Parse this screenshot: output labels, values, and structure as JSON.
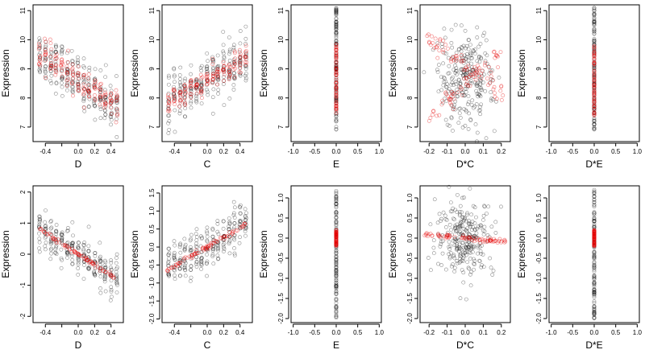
{
  "colors": {
    "observed": "#000000",
    "fitted": "#e60000",
    "background": "#ffffff"
  },
  "chart_data": [
    {
      "type": "scatter",
      "xlabel": "D",
      "ylabel": "Expression",
      "xlim": [
        -0.55,
        0.55
      ],
      "ylim": [
        6.5,
        11.2
      ],
      "xticks": [
        -0.4,
        -0.2,
        0.0,
        0.2,
        0.4
      ],
      "xtick_labels": [
        "-0.4",
        "",
        "0.0",
        "0.2",
        "0.4"
      ],
      "yticks": [
        7,
        8,
        9,
        10,
        11
      ],
      "ytick_labels": [
        "7",
        "8",
        "9",
        "10",
        "11"
      ],
      "x_groups": [
        -0.47,
        -0.4,
        -0.33,
        -0.27,
        -0.2,
        -0.13,
        -0.07,
        0.0,
        0.07,
        0.13,
        0.2,
        0.27,
        0.33,
        0.4,
        0.47
      ],
      "observed": {
        "trend": {
          "intercept": 8.6,
          "slope": -2.0
        },
        "spread": 0.75
      },
      "fitted": {
        "trend": {
          "intercept": 8.6,
          "slope": -2.0
        },
        "spread": 0.55
      },
      "series": [
        {
          "name": "",
          "color": "#000000"
        },
        {
          "name": "",
          "color": "#e60000"
        }
      ]
    },
    {
      "type": "scatter",
      "xlabel": "C",
      "ylabel": "Expression",
      "xlim": [
        -0.55,
        0.55
      ],
      "ylim": [
        6.5,
        11.2
      ],
      "xticks": [
        -0.4,
        -0.2,
        0.0,
        0.2,
        0.4
      ],
      "xtick_labels": [
        "-0.4",
        "",
        "0.0",
        "0.2",
        "0.4"
      ],
      "yticks": [
        7,
        8,
        9,
        10,
        11
      ],
      "ytick_labels": [
        "7",
        "8",
        "9",
        "10",
        "11"
      ],
      "x_groups": [
        -0.47,
        -0.4,
        -0.33,
        -0.27,
        -0.2,
        -0.13,
        -0.07,
        0.0,
        0.07,
        0.13,
        0.2,
        0.27,
        0.33,
        0.4,
        0.47
      ],
      "observed": {
        "trend": {
          "intercept": 8.6,
          "slope": 1.6
        },
        "spread": 0.8
      },
      "fitted": {
        "trend": {
          "intercept": 8.6,
          "slope": 1.6
        },
        "spread": 0.4
      },
      "series": [
        {
          "name": "",
          "color": "#000000"
        },
        {
          "name": "",
          "color": "#e60000"
        }
      ]
    },
    {
      "type": "scatter",
      "xlabel": "E",
      "ylabel": "Expression",
      "xlim": [
        -1.05,
        1.05
      ],
      "ylim": [
        6.5,
        11.2
      ],
      "xticks": [
        -1.0,
        -0.5,
        0.0,
        0.5,
        1.0
      ],
      "xtick_labels": [
        "-1.0",
        "-0.5",
        "0.0",
        "0.5",
        "1.0"
      ],
      "yticks": [
        7,
        8,
        9,
        10,
        11
      ],
      "ytick_labels": [
        "7",
        "8",
        "9",
        "10",
        "11"
      ],
      "x_groups": [
        0.0
      ],
      "observed": {
        "range": [
          6.9,
          11.1
        ]
      },
      "fitted": {
        "range": [
          7.4,
          9.9
        ]
      },
      "series": [
        {
          "name": "",
          "color": "#000000"
        },
        {
          "name": "",
          "color": "#e60000"
        }
      ]
    },
    {
      "type": "scatter",
      "xlabel": "D*C",
      "ylabel": "Expression",
      "xlim": [
        -0.25,
        0.25
      ],
      "ylim": [
        6.5,
        11.2
      ],
      "xticks": [
        -0.2,
        -0.1,
        0.0,
        0.1,
        0.2
      ],
      "xtick_labels": [
        "-0.2",
        "-0.1",
        "0.0",
        "0.1",
        "0.2"
      ],
      "yticks": [
        7,
        8,
        9,
        10,
        11
      ],
      "ytick_labels": [
        "7",
        "8",
        "9",
        "10",
        "11"
      ],
      "x_groups": [],
      "observed": {
        "center": [
          0.0,
          8.6
        ],
        "x_spread": 0.08,
        "y_spread": 0.8
      },
      "fitted": {
        "branches": [
          {
            "from": [
              -0.22,
              10.1
            ],
            "to": [
              0.22,
              8.1
            ]
          },
          {
            "from": [
              -0.2,
              7.3
            ],
            "to": [
              0.2,
              9.6
            ]
          }
        ]
      },
      "series": [
        {
          "name": "",
          "color": "#000000"
        },
        {
          "name": "",
          "color": "#e60000"
        }
      ]
    },
    {
      "type": "scatter",
      "xlabel": "D*E",
      "ylabel": "Expression",
      "xlim": [
        -1.05,
        1.05
      ],
      "ylim": [
        6.5,
        11.2
      ],
      "xticks": [
        -1.0,
        -0.5,
        0.0,
        0.5,
        1.0
      ],
      "xtick_labels": [
        "-1.0",
        "-0.5",
        "0.0",
        "0.5",
        "1.0"
      ],
      "yticks": [
        7,
        8,
        9,
        10,
        11
      ],
      "ytick_labels": [
        "7",
        "8",
        "9",
        "10",
        "11"
      ],
      "x_groups": [
        0.0
      ],
      "observed": {
        "range": [
          6.9,
          11.1
        ]
      },
      "fitted": {
        "range": [
          7.4,
          9.9
        ]
      },
      "series": [
        {
          "name": "",
          "color": "#000000"
        },
        {
          "name": "",
          "color": "#e60000"
        }
      ]
    },
    {
      "type": "scatter",
      "xlabel": "D",
      "ylabel": "Expression",
      "xlim": [
        -0.55,
        0.55
      ],
      "ylim": [
        -2.2,
        2.2
      ],
      "xticks": [
        -0.4,
        -0.2,
        0.0,
        0.2,
        0.4
      ],
      "xtick_labels": [
        "-0.4",
        "",
        "0.0",
        "0.2",
        "0.4"
      ],
      "yticks": [
        -2,
        -1,
        0,
        1,
        2
      ],
      "ytick_labels": [
        "-2",
        "-1",
        "0",
        "1",
        "2"
      ],
      "x_groups": [
        -0.47,
        -0.4,
        -0.33,
        -0.27,
        -0.2,
        -0.13,
        -0.07,
        0.0,
        0.07,
        0.13,
        0.2,
        0.27,
        0.33,
        0.4,
        0.47
      ],
      "observed": {
        "trend": {
          "intercept": 0.0,
          "slope": -1.7
        },
        "spread": 0.6
      },
      "fitted": {
        "line": {
          "intercept": 0.0,
          "slope": -1.7
        }
      },
      "series": [
        {
          "name": "",
          "color": "#000000"
        },
        {
          "name": "",
          "color": "#e60000"
        }
      ]
    },
    {
      "type": "scatter",
      "xlabel": "C",
      "ylabel": "Expression",
      "xlim": [
        -0.55,
        0.55
      ],
      "ylim": [
        -2.1,
        1.7
      ],
      "xticks": [
        -0.4,
        -0.2,
        0.0,
        0.2,
        0.4
      ],
      "xtick_labels": [
        "-0.4",
        "",
        "0.0",
        "0.2",
        "0.4"
      ],
      "yticks": [
        -2.0,
        -1.5,
        -1.0,
        -0.5,
        0.0,
        0.5,
        1.0,
        1.5
      ],
      "ytick_labels": [
        "-2.0",
        "-1.5",
        "-1.0",
        "-0.5",
        "0.0",
        "0.5",
        "1.0",
        "1.5"
      ],
      "x_groups": [
        -0.47,
        -0.4,
        -0.33,
        -0.27,
        -0.2,
        -0.13,
        -0.07,
        0.0,
        0.07,
        0.13,
        0.2,
        0.27,
        0.33,
        0.4,
        0.47
      ],
      "observed": {
        "trend": {
          "intercept": 0.0,
          "slope": 1.3
        },
        "spread": 0.55
      },
      "fitted": {
        "line": {
          "intercept": 0.0,
          "slope": 1.3
        }
      },
      "series": [
        {
          "name": "",
          "color": "#000000"
        },
        {
          "name": "",
          "color": "#e60000"
        }
      ]
    },
    {
      "type": "scatter",
      "xlabel": "E",
      "ylabel": "Expression",
      "xlim": [
        -1.05,
        1.05
      ],
      "ylim": [
        -2.1,
        1.3
      ],
      "xticks": [
        -1.0,
        -0.5,
        0.0,
        0.5,
        1.0
      ],
      "xtick_labels": [
        "-1.0",
        "-0.5",
        "0.0",
        "0.5",
        "1.0"
      ],
      "yticks": [
        -2.0,
        -1.5,
        -1.0,
        -0.5,
        0.0,
        0.5,
        1.0
      ],
      "ytick_labels": [
        "-2.0",
        "-1.5",
        "-1.0",
        "-0.5",
        "0.0",
        "0.5",
        "1.0"
      ],
      "x_groups": [
        0.0
      ],
      "observed": {
        "range": [
          -2.0,
          1.2
        ]
      },
      "fitted": {
        "range": [
          -0.2,
          0.2
        ]
      },
      "series": [
        {
          "name": "",
          "color": "#000000"
        },
        {
          "name": "",
          "color": "#e60000"
        }
      ]
    },
    {
      "type": "scatter",
      "xlabel": "D*C",
      "ylabel": "Expression",
      "xlim": [
        -0.25,
        0.25
      ],
      "ylim": [
        -2.1,
        1.3
      ],
      "xticks": [
        -0.2,
        -0.1,
        0.0,
        0.1,
        0.2
      ],
      "xtick_labels": [
        "-0.2",
        "-0.1",
        "0.0",
        "0.1",
        "0.2"
      ],
      "yticks": [
        -2.0,
        -1.5,
        -1.0,
        -0.5,
        0.0,
        0.5,
        1.0
      ],
      "ytick_labels": [
        "-2.0",
        "-1.5",
        "-1.0",
        "-0.5",
        "0.0",
        "0.5",
        "1.0"
      ],
      "x_groups": [],
      "observed": {
        "center": [
          0.0,
          0.0
        ],
        "x_spread": 0.08,
        "y_spread": 0.45
      },
      "fitted": {
        "line": {
          "intercept": 0.0,
          "slope": -0.4
        }
      },
      "series": [
        {
          "name": "",
          "color": "#000000"
        },
        {
          "name": "",
          "color": "#e60000"
        }
      ]
    },
    {
      "type": "scatter",
      "xlabel": "D*E",
      "ylabel": "Expression",
      "xlim": [
        -1.05,
        1.05
      ],
      "ylim": [
        -2.1,
        1.3
      ],
      "xticks": [
        -1.0,
        -0.5,
        0.0,
        0.5,
        1.0
      ],
      "xtick_labels": [
        "-1.0",
        "-0.5",
        "0.0",
        "0.5",
        "1.0"
      ],
      "yticks": [
        -2.0,
        -1.5,
        -1.0,
        -0.5,
        0.0,
        0.5,
        1.0
      ],
      "ytick_labels": [
        "-2.0",
        "-1.5",
        "-1.0",
        "-0.5",
        "0.0",
        "0.5",
        "1.0"
      ],
      "x_groups": [
        0.0
      ],
      "observed": {
        "range": [
          -2.0,
          1.2
        ]
      },
      "fitted": {
        "range": [
          -0.2,
          0.2
        ]
      },
      "series": [
        {
          "name": "",
          "color": "#000000"
        },
        {
          "name": "",
          "color": "#e60000"
        }
      ]
    }
  ]
}
